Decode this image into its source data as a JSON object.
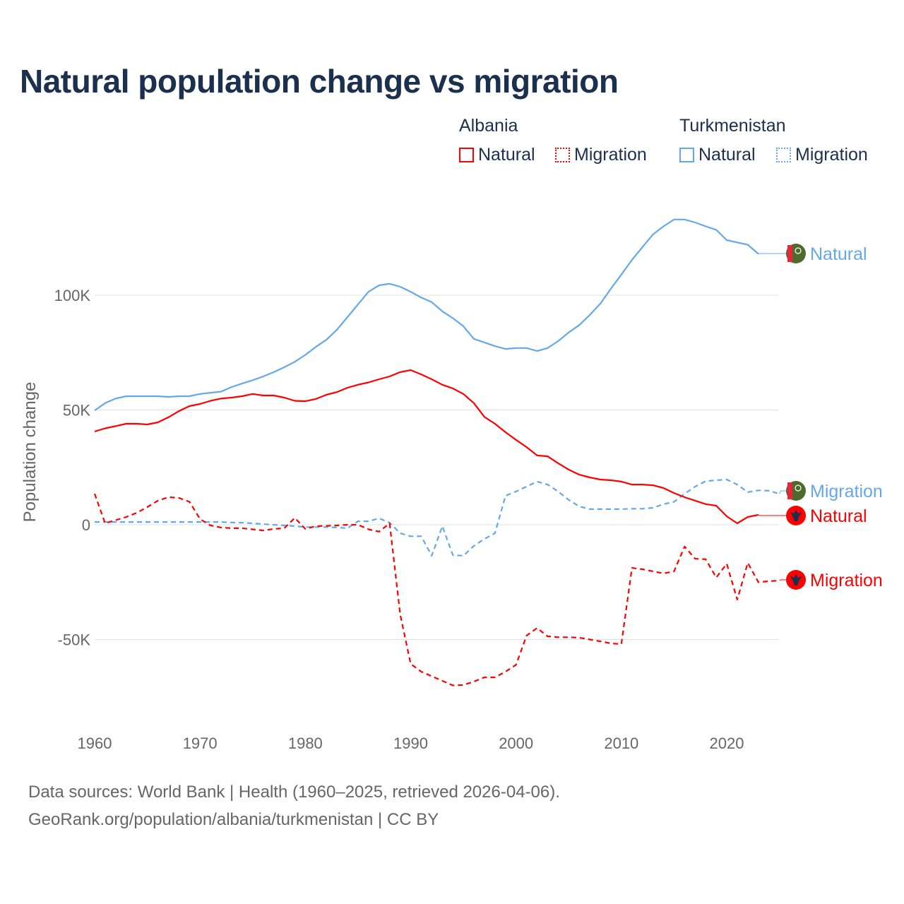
{
  "chart_data": {
    "type": "line",
    "title": "Natural population change vs migration",
    "xlabel": "",
    "ylabel": "Population change",
    "xlim": [
      1960,
      2025
    ],
    "ylim": [
      -75000,
      140000
    ],
    "x_ticks": [
      "1960",
      "1970",
      "1980",
      "1990",
      "2000",
      "2010",
      "2020"
    ],
    "y_ticks": [
      {
        "value": 100000,
        "label": "100K"
      },
      {
        "value": 50000,
        "label": "50K"
      },
      {
        "value": 0,
        "label": "0"
      },
      {
        "value": -50000,
        "label": "-50K"
      }
    ],
    "grid": true,
    "legend": {
      "placement": "top-right",
      "groups": [
        {
          "country": "Albania",
          "items": [
            "Natural",
            "Migration"
          ]
        },
        {
          "country": "Turkmenistan",
          "items": [
            "Natural",
            "Migration"
          ]
        }
      ]
    },
    "start_year": 1960,
    "series": [
      {
        "name": "Turkmenistan Natural",
        "country": "Turkmenistan",
        "kind": "Natural",
        "end_label": "Natural",
        "color": "#64a8ec",
        "dash": false,
        "flag": "turkmenistan-flag",
        "values": [
          49800,
          53000,
          55000,
          56000,
          56000,
          56000,
          56000,
          55700,
          56000,
          56000,
          57000,
          57500,
          58000,
          60000,
          61500,
          63000,
          64600,
          66500,
          68600,
          71000,
          74000,
          77500,
          80600,
          85000,
          90500,
          96000,
          101500,
          104300,
          105000,
          103700,
          101500,
          99000,
          97000,
          93000,
          90000,
          86500,
          81000,
          79400,
          77800,
          76600,
          77000,
          77000,
          75700,
          77000,
          80000,
          83800,
          87000,
          91400,
          96300,
          102800,
          109000,
          115400,
          121000,
          126500,
          130000,
          133000,
          133000,
          131700,
          130000,
          128500,
          124000,
          123000,
          122000,
          118000
        ],
        "last_value": 118000
      },
      {
        "name": "Turkmenistan Migration",
        "country": "Turkmenistan",
        "kind": "Migration",
        "end_label": "Migration",
        "color": "#64a8ec",
        "dash": true,
        "flag": "turkmenistan-flag",
        "values": [
          1200,
          1200,
          1200,
          1200,
          1200,
          1200,
          1200,
          1200,
          1200,
          1200,
          1200,
          1200,
          1200,
          1000,
          900,
          600,
          300,
          0,
          -300,
          -600,
          -1000,
          -1000,
          -1000,
          -1200,
          -1500,
          1500,
          1500,
          2800,
          900,
          -3700,
          -5000,
          -5000,
          -13500,
          -600,
          -13200,
          -13500,
          -9200,
          -6200,
          -3700,
          12600,
          14500,
          16600,
          18800,
          17500,
          14500,
          10800,
          8000,
          6800,
          6800,
          6800,
          6800,
          7000,
          7000,
          7400,
          9000,
          10000,
          13500,
          16600,
          19000,
          19400,
          19700,
          17500,
          14200,
          15000,
          14800,
          13500
        ],
        "last_value": 13500
      },
      {
        "name": "Albania Natural",
        "country": "Albania",
        "kind": "Natural",
        "end_label": "Natural",
        "color": "#ff0000",
        "dash": false,
        "flag": "albania-flag",
        "values": [
          40600,
          42000,
          43000,
          44000,
          44000,
          43700,
          44600,
          46800,
          49500,
          51700,
          52600,
          54000,
          55000,
          55400,
          56000,
          57000,
          56300,
          56300,
          55400,
          54000,
          53800,
          54800,
          56600,
          57800,
          59700,
          61000,
          62000,
          63400,
          64600,
          66500,
          67400,
          65500,
          63400,
          61000,
          59400,
          57000,
          53000,
          47000,
          44000,
          40300,
          37000,
          33800,
          30200,
          29800,
          26800,
          24000,
          21800,
          20600,
          19700,
          19400,
          18800,
          17500,
          17500,
          17200,
          16000,
          13800,
          12000,
          10500,
          9000,
          8300,
          3700,
          600,
          3400,
          4300
        ],
        "last_value": 4300
      },
      {
        "name": "Albania Migration",
        "country": "Albania",
        "kind": "Migration",
        "end_label": "Migration",
        "color": "#ff0000",
        "dash": true,
        "flag": "albania-flag",
        "values": [
          13500,
          600,
          2000,
          3400,
          5200,
          7700,
          10500,
          12000,
          11700,
          10000,
          2500,
          -300,
          -1200,
          -1500,
          -1500,
          -2000,
          -2500,
          -1800,
          -1500,
          3000,
          -1800,
          -600,
          -500,
          -300,
          0,
          0,
          -2000,
          -3000,
          600,
          -39000,
          -60600,
          -64000,
          -66000,
          -68000,
          -70000,
          -69800,
          -68300,
          -66500,
          -66500,
          -64000,
          -61000,
          -48300,
          -45000,
          -48600,
          -49000,
          -49000,
          -49200,
          -50000,
          -50800,
          -51700,
          -52000,
          -18800,
          -19400,
          -20300,
          -21200,
          -20300,
          -9500,
          -14800,
          -15000,
          -23000,
          -17000,
          -32600,
          -16600,
          -25000,
          -24600,
          -24300
        ],
        "last_value": -24300
      }
    ]
  },
  "header": {
    "title": "Natural population change vs migration"
  },
  "legend": {
    "albania": "Albania",
    "albania_natural": "Natural",
    "albania_migration": "Migration",
    "turkmenistan": "Turkmenistan",
    "turkmenistan_natural": "Natural",
    "turkmenistan_migration": "Migration",
    "colors": {
      "albania": "#ff0000",
      "turkmenistan": "#64a8ec"
    }
  },
  "footer": {
    "line1": "Data sources: World Bank | Health (1960–2025, retrieved 2026-04-06).",
    "line2": "GeoRank.org/population/albania/turkmenistan | CC BY"
  }
}
